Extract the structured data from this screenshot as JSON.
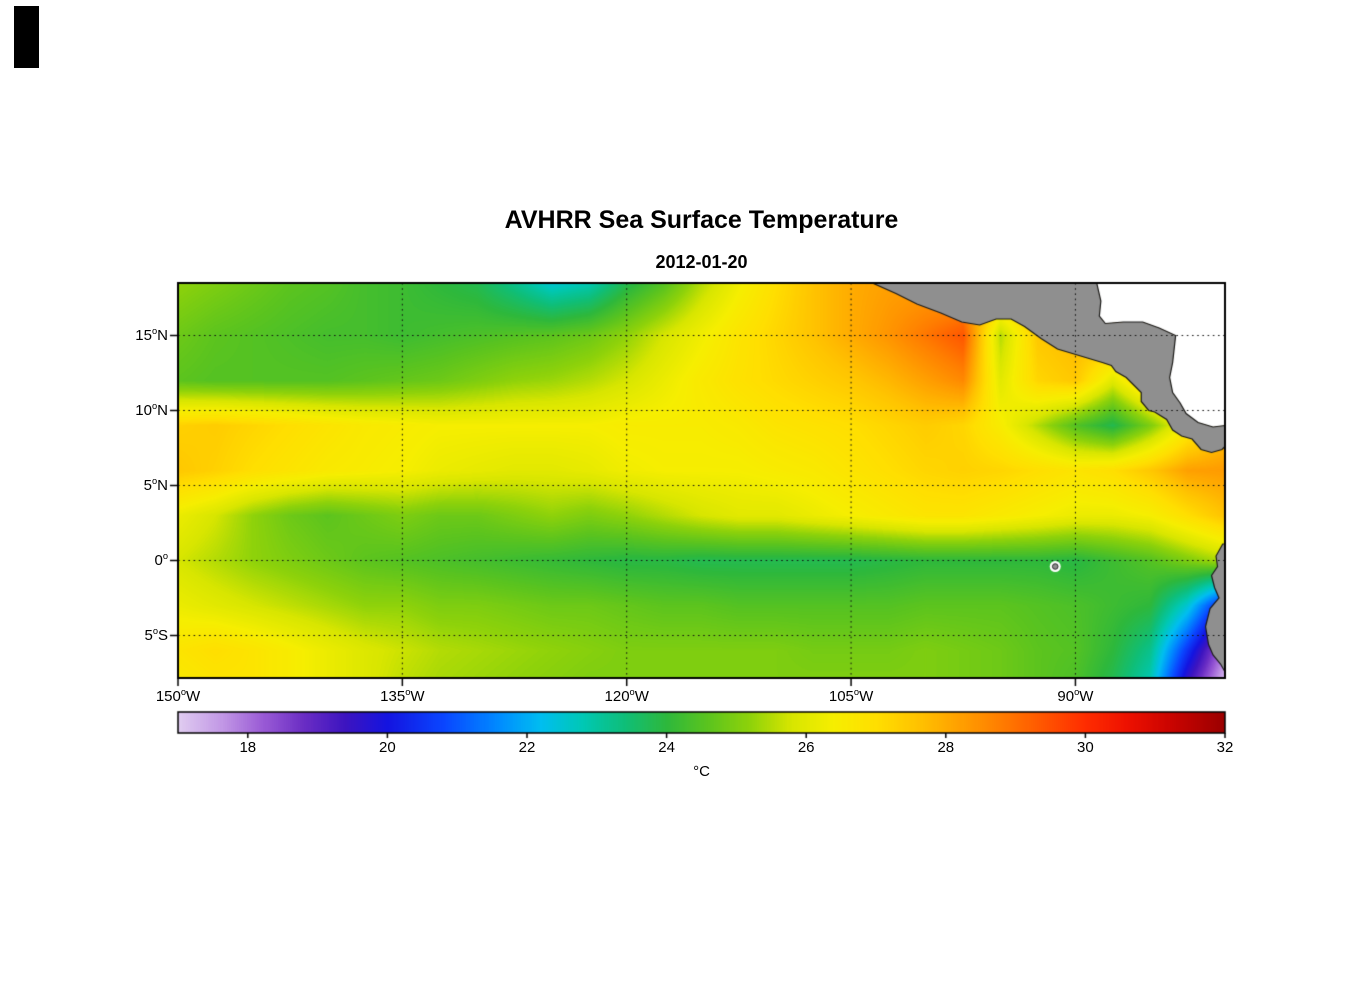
{
  "figure": {
    "title": "AVHRR Sea Surface Temperature",
    "subtitle": "2012-01-20"
  },
  "axes": {
    "lat": [
      {
        "deg": "15",
        "hem": "N",
        "value": 15
      },
      {
        "deg": "10",
        "hem": "N",
        "value": 10
      },
      {
        "deg": "5",
        "hem": "N",
        "value": 5
      },
      {
        "deg": "0",
        "hem": "",
        "value": 0
      },
      {
        "deg": "5",
        "hem": "S",
        "value": -5
      }
    ],
    "lon": [
      {
        "deg": "150",
        "hem": "W",
        "value": -150
      },
      {
        "deg": "135",
        "hem": "W",
        "value": -135
      },
      {
        "deg": "120",
        "hem": "W",
        "value": -120
      },
      {
        "deg": "105",
        "hem": "W",
        "value": -105
      },
      {
        "deg": "90",
        "hem": "W",
        "value": -90
      }
    ],
    "grid_lat_lines": [
      15,
      10,
      5,
      0,
      -5
    ],
    "grid_lon_lines": [
      -135,
      -120,
      -105,
      -90
    ]
  },
  "colorbar": {
    "units": "°C",
    "ticks": [
      18,
      20,
      22,
      24,
      26,
      28,
      30,
      32
    ],
    "range": [
      17,
      32
    ]
  },
  "chart_data": {
    "type": "heatmap",
    "title": "AVHRR Sea Surface Temperature",
    "date": "2012-01-20",
    "units": "°C",
    "value_range": [
      17,
      32
    ],
    "lon": [
      -150,
      -147.5,
      -145,
      -142.5,
      -140,
      -137.5,
      -135,
      -132.5,
      -130,
      -127.5,
      -125,
      -122.5,
      -120,
      -117.5,
      -115,
      -112.5,
      -110,
      -107.5,
      -105,
      -102.5,
      -100,
      -97.5,
      -95,
      -92.5,
      -90,
      -87.5,
      -85,
      -82.5,
      -80
    ],
    "lat": [
      18.5,
      15,
      12,
      9,
      6,
      3,
      0,
      -3,
      -6,
      -8
    ],
    "sst_c": [
      [
        25.2,
        25.0,
        24.8,
        24.6,
        24.5,
        24.3,
        24.2,
        24.0,
        23.8,
        23.2,
        22.5,
        22.8,
        23.8,
        24.5,
        25.5,
        26.3,
        27.0,
        27.6,
        28.0,
        28.2,
        28.2,
        28.0,
        28.0,
        28.0,
        28.0,
        28.0,
        28.0,
        28.0,
        28.0
      ],
      [
        24.8,
        24.6,
        24.5,
        24.4,
        24.3,
        24.3,
        24.2,
        24.3,
        24.4,
        24.5,
        24.6,
        24.8,
        25.2,
        25.8,
        26.3,
        26.8,
        27.2,
        27.6,
        28.0,
        28.4,
        28.9,
        29.4,
        25.5,
        27.5,
        27.8,
        28.0,
        28.0,
        28.0,
        28.0
      ],
      [
        24.6,
        24.5,
        24.5,
        24.5,
        24.5,
        24.6,
        24.7,
        24.8,
        25.0,
        25.2,
        25.3,
        25.5,
        25.8,
        26.2,
        26.6,
        26.9,
        27.1,
        27.3,
        27.5,
        27.8,
        28.2,
        28.6,
        26.0,
        27.2,
        27.5,
        26.0,
        27.5,
        27.5,
        27.5
      ],
      [
        27.3,
        27.4,
        27.2,
        27.0,
        26.8,
        26.6,
        26.5,
        26.4,
        26.4,
        26.4,
        26.4,
        26.4,
        26.5,
        26.5,
        26.5,
        26.6,
        26.8,
        26.9,
        27.0,
        27.2,
        27.4,
        27.2,
        26.5,
        25.5,
        24.5,
        23.8,
        25.0,
        26.5,
        27.5
      ],
      [
        27.5,
        27.3,
        27.0,
        26.8,
        26.6,
        26.5,
        26.4,
        26.2,
        26.1,
        26.0,
        26.0,
        26.1,
        26.3,
        26.4,
        26.4,
        26.4,
        26.5,
        26.6,
        26.8,
        27.0,
        27.2,
        27.3,
        27.2,
        27.0,
        26.8,
        27.0,
        27.5,
        28.2,
        28.3
      ],
      [
        26.2,
        25.8,
        25.2,
        24.8,
        24.6,
        24.8,
        25.0,
        24.8,
        24.8,
        25.0,
        25.2,
        25.0,
        25.2,
        25.5,
        25.8,
        26.0,
        26.0,
        26.2,
        26.4,
        26.6,
        26.8,
        26.8,
        26.6,
        26.4,
        26.2,
        26.2,
        26.4,
        27.0,
        27.6
      ],
      [
        25.8,
        25.5,
        25.2,
        25.0,
        24.8,
        24.6,
        24.5,
        24.4,
        24.3,
        24.2,
        24.1,
        24.0,
        23.9,
        23.9,
        23.8,
        23.8,
        23.8,
        23.8,
        23.8,
        23.9,
        24.0,
        24.0,
        24.0,
        24.0,
        23.9,
        24.2,
        24.5,
        25.0,
        25.5
      ],
      [
        26.2,
        26.0,
        25.8,
        25.6,
        25.4,
        25.2,
        25.2,
        25.0,
        25.0,
        24.9,
        24.8,
        24.8,
        24.7,
        24.6,
        24.6,
        24.5,
        24.5,
        24.5,
        24.5,
        24.5,
        24.6,
        24.6,
        24.6,
        24.5,
        24.4,
        24.2,
        24.0,
        22.5,
        20.0
      ],
      [
        26.8,
        27.0,
        26.8,
        26.5,
        26.2,
        25.9,
        25.7,
        25.5,
        25.4,
        25.3,
        25.2,
        25.1,
        25.0,
        25.0,
        25.0,
        25.0,
        25.0,
        24.9,
        24.9,
        24.9,
        25.0,
        24.9,
        24.8,
        24.6,
        24.5,
        24.0,
        23.2,
        20.5,
        17.8
      ],
      [
        26.6,
        26.8,
        26.8,
        26.5,
        26.2,
        25.9,
        25.6,
        25.4,
        25.3,
        25.2,
        25.1,
        25.0,
        25.0,
        25.0,
        25.0,
        25.0,
        25.0,
        25.0,
        25.0,
        25.0,
        25.0,
        24.9,
        24.8,
        24.6,
        24.4,
        23.8,
        22.8,
        19.5,
        17.2
      ]
    ],
    "colormap": [
      [
        17.0,
        "#e0ccf0"
      ],
      [
        17.6,
        "#c39ae6"
      ],
      [
        18.2,
        "#9b5cd6"
      ],
      [
        18.8,
        "#6a2dc4"
      ],
      [
        19.4,
        "#3c14c0"
      ],
      [
        20.0,
        "#1414e0"
      ],
      [
        20.8,
        "#0a46ff"
      ],
      [
        21.6,
        "#008cff"
      ],
      [
        22.2,
        "#00bef0"
      ],
      [
        22.8,
        "#00c8b4"
      ],
      [
        23.4,
        "#0fbe78"
      ],
      [
        24.0,
        "#2eb83c"
      ],
      [
        24.6,
        "#5cc41e"
      ],
      [
        25.2,
        "#8fd20a"
      ],
      [
        25.8,
        "#d8e600"
      ],
      [
        26.4,
        "#f6ee00"
      ],
      [
        27.0,
        "#ffdf00"
      ],
      [
        27.6,
        "#ffc300"
      ],
      [
        28.2,
        "#ffa000"
      ],
      [
        28.8,
        "#ff7d00"
      ],
      [
        29.4,
        "#ff5500"
      ],
      [
        30.0,
        "#ff2d00"
      ],
      [
        30.6,
        "#ee1100"
      ],
      [
        31.2,
        "#cc0400"
      ],
      [
        32.0,
        "#9b0000"
      ]
    ],
    "land": {
      "fill": "#8f8f8f",
      "outline": "#1a1a1a",
      "no_data_fill": "#ffffff",
      "polygons": {
        "central_america": [
          [
            -103.8,
            18.6
          ],
          [
            -102.0,
            17.8
          ],
          [
            -100.6,
            17.1
          ],
          [
            -99.0,
            16.5
          ],
          [
            -97.6,
            15.9
          ],
          [
            -96.4,
            15.7
          ],
          [
            -95.3,
            16.1
          ],
          [
            -94.3,
            16.1
          ],
          [
            -93.4,
            15.6
          ],
          [
            -92.3,
            14.8
          ],
          [
            -91.2,
            14.1
          ],
          [
            -90.2,
            13.8
          ],
          [
            -89.2,
            13.5
          ],
          [
            -88.2,
            13.2
          ],
          [
            -87.6,
            13.0
          ],
          [
            -87.3,
            12.6
          ],
          [
            -86.6,
            12.2
          ],
          [
            -85.9,
            11.5
          ],
          [
            -85.6,
            11.2
          ],
          [
            -85.6,
            10.6
          ],
          [
            -85.1,
            10.0
          ],
          [
            -84.7,
            9.9
          ],
          [
            -83.9,
            9.4
          ],
          [
            -83.5,
            8.7
          ],
          [
            -82.9,
            8.3
          ],
          [
            -82.2,
            8.1
          ],
          [
            -81.6,
            7.4
          ],
          [
            -80.9,
            7.2
          ],
          [
            -80.2,
            7.4
          ],
          [
            -80.0,
            7.6
          ],
          [
            -80.0,
            9.0
          ],
          [
            -80.8,
            8.9
          ],
          [
            -81.8,
            9.2
          ],
          [
            -82.6,
            9.8
          ],
          [
            -83.0,
            10.5
          ],
          [
            -83.5,
            11.2
          ],
          [
            -83.7,
            12.2
          ],
          [
            -83.5,
            13.2
          ],
          [
            -83.3,
            15.0
          ],
          [
            -84.4,
            15.5
          ],
          [
            -85.5,
            15.9
          ],
          [
            -86.8,
            15.9
          ],
          [
            -88.0,
            15.8
          ],
          [
            -88.4,
            16.3
          ],
          [
            -88.3,
            17.3
          ],
          [
            -88.6,
            18.6
          ]
        ],
        "south_america": [
          [
            -80.15,
            1.1
          ],
          [
            -80.6,
            0.3
          ],
          [
            -80.5,
            -0.4
          ],
          [
            -80.9,
            -1.0
          ],
          [
            -80.7,
            -1.8
          ],
          [
            -80.4,
            -2.5
          ],
          [
            -81.0,
            -3.2
          ],
          [
            -81.3,
            -4.4
          ],
          [
            -81.1,
            -5.6
          ],
          [
            -80.8,
            -6.3
          ],
          [
            -80.3,
            -6.9
          ],
          [
            -79.9,
            -7.6
          ],
          [
            -79.7,
            -8.3
          ],
          [
            -79.4,
            -8.3
          ],
          [
            -79.4,
            1.1
          ]
        ]
      },
      "caribbean_mask": [
        [
          -88.6,
          18.6
        ],
        [
          -88.3,
          17.3
        ],
        [
          -88.4,
          16.3
        ],
        [
          -88.0,
          15.8
        ],
        [
          -86.8,
          15.9
        ],
        [
          -85.5,
          15.9
        ],
        [
          -84.4,
          15.5
        ],
        [
          -83.3,
          15.0
        ],
        [
          -83.5,
          13.2
        ],
        [
          -83.7,
          12.2
        ],
        [
          -83.5,
          11.2
        ],
        [
          -83.0,
          10.5
        ],
        [
          -82.6,
          9.8
        ],
        [
          -81.8,
          9.2
        ],
        [
          -80.8,
          8.9
        ],
        [
          -80.0,
          9.0
        ],
        [
          -79.7,
          9.2
        ],
        [
          -79.7,
          18.6
        ]
      ],
      "galapagos": {
        "lon": -91.35,
        "lat": -0.4
      }
    }
  }
}
